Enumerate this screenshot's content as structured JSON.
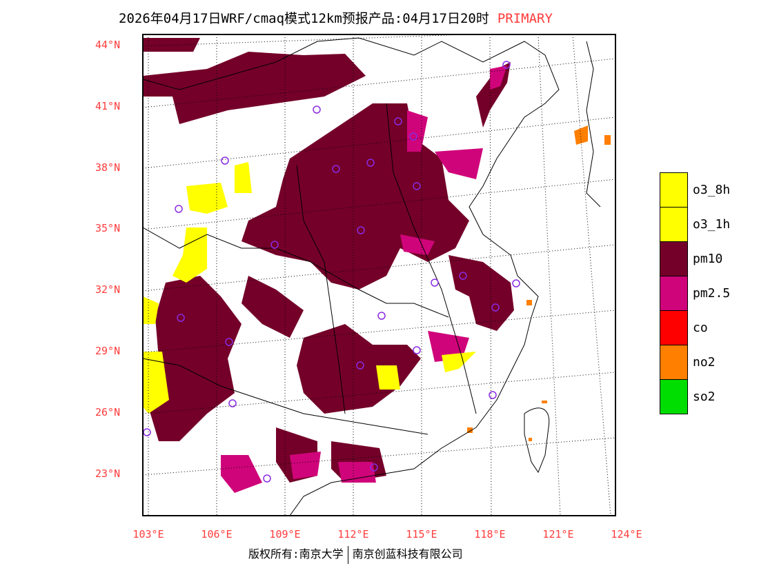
{
  "title": {
    "main": "2026年04月17日WRF/cmaq模式12km预报产品:04月17日20时",
    "tag": "PRIMARY"
  },
  "lat_labels": [
    "44°N",
    "41°N",
    "38°N",
    "35°N",
    "32°N",
    "29°N",
    "26°N",
    "23°N"
  ],
  "lon_labels": [
    "103°E",
    "106°E",
    "109°E",
    "112°E",
    "115°E",
    "118°E",
    "121°E",
    "124°E"
  ],
  "legend": [
    {
      "label": "o3_8h",
      "color": "#ffff00"
    },
    {
      "label": "o3_1h",
      "color": "#ffff00"
    },
    {
      "label": "pm10",
      "color": "#740029"
    },
    {
      "label": "pm2.5",
      "color": "#d0047a"
    },
    {
      "label": "co",
      "color": "#ff0000"
    },
    {
      "label": "no2",
      "color": "#ff7f00"
    },
    {
      "label": "so2",
      "color": "#00dd00"
    }
  ],
  "footer": {
    "left": "版权所有:南京大学",
    "right": "南京创蓝科技有限公司"
  }
}
